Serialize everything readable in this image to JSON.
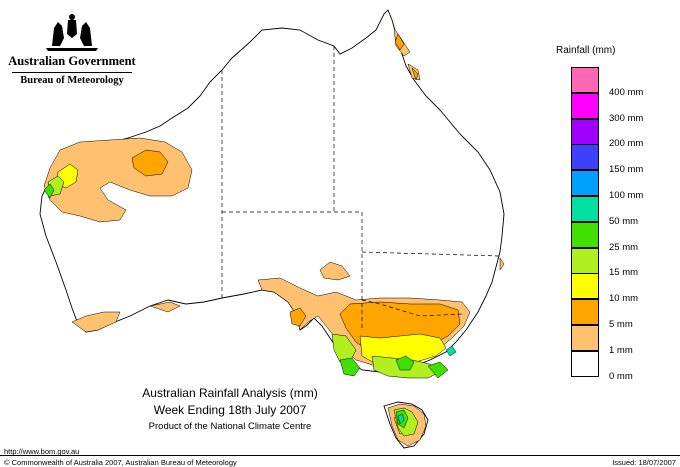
{
  "header": {
    "government": "Australian Government",
    "bureau": "Bureau of Meteorology"
  },
  "legend": {
    "title": "Rainfall (mm)",
    "items": [
      {
        "label": "",
        "color": "#ff66b3"
      },
      {
        "label": "400 mm",
        "color": "#ff00ff"
      },
      {
        "label": "300 mm",
        "color": "#a000ff"
      },
      {
        "label": "200 mm",
        "color": "#4040ff"
      },
      {
        "label": "150 mm",
        "color": "#00a0ff"
      },
      {
        "label": "100 mm",
        "color": "#00e0a0"
      },
      {
        "label": "50 mm",
        "color": "#40e000"
      },
      {
        "label": "25 mm",
        "color": "#b0f020"
      },
      {
        "label": "15 mm",
        "color": "#ffff00"
      },
      {
        "label": "10 mm",
        "color": "#ffa500"
      },
      {
        "label": "5 mm",
        "color": "#ffc070"
      },
      {
        "label": "1 mm",
        "color": "#ffffff"
      },
      {
        "label": "0 mm",
        "color": ""
      }
    ]
  },
  "titles": {
    "line1": "Australian Rainfall Analysis (mm)",
    "line2": "Week Ending 18th July 2007",
    "line3": "Product of the National Climate Centre"
  },
  "footer": {
    "url": "http://www.bom.gov.au",
    "copyright": "© Commonwealth of Australia 2007, Australian Bureau of Meteorology",
    "issued": "Issued: 18/07/2007"
  },
  "colors": {
    "c1": "#ffc070",
    "c5": "#ffa500",
    "c10": "#ffff00",
    "c15": "#b0f020",
    "c25": "#40e000",
    "c50": "#00e0a0"
  }
}
